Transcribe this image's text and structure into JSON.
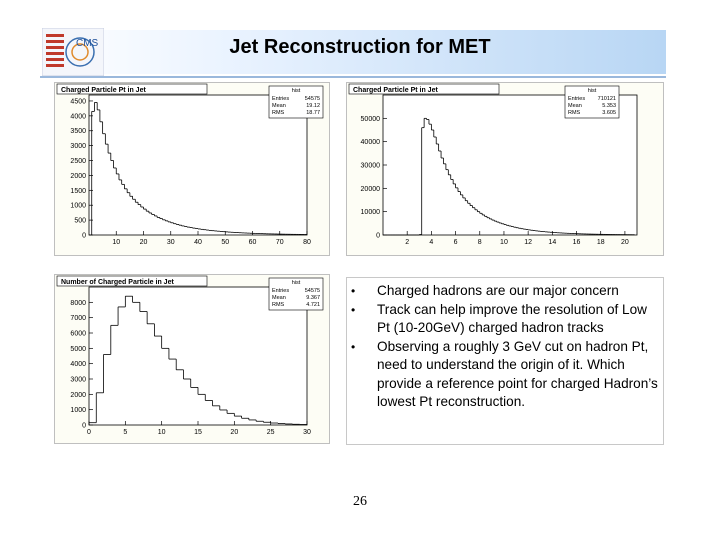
{
  "slide": {
    "title": "Jet Reconstruction for MET",
    "page_number": "26",
    "logo_text": "CMS"
  },
  "bullets": [
    "Charged hadrons are our major concern",
    "Track can help improve the resolution of Low Pt (10-20GeV) charged hadron tracks",
    "Observing a roughly 3 GeV cut on hadron Pt, need to understand the origin of it. Which provide a reference point for charged Hadron’s lowest Pt reconstruction."
  ],
  "colors": {
    "header_accent": "#b8d6f4",
    "plot_bg": "#fdfdf5",
    "hist_line": "#000000"
  },
  "chart_data": [
    {
      "type": "histogram",
      "title": "Charged Particle Pt in Jet",
      "stats": {
        "name": "hist",
        "rows": [
          [
            "Entries",
            "54575"
          ],
          [
            "Mean",
            "19.12"
          ],
          [
            "RMS",
            "18.77"
          ]
        ]
      },
      "xlim": [
        0,
        80
      ],
      "ylim": [
        0,
        4700
      ],
      "xticks": [
        10,
        20,
        30,
        40,
        50,
        60,
        70,
        80
      ],
      "yticks": [
        0,
        500,
        1000,
        1500,
        2000,
        2500,
        3000,
        3500,
        4000,
        4500
      ],
      "bin_width": 1,
      "x_start": 0,
      "values": [
        0,
        4150,
        4450,
        4200,
        3800,
        3400,
        3050,
        2750,
        2500,
        2250,
        2050,
        1850,
        1700,
        1550,
        1420,
        1300,
        1200,
        1100,
        1020,
        940,
        870,
        800,
        740,
        690,
        640,
        590,
        550,
        510,
        475,
        440,
        410,
        380,
        355,
        330,
        305,
        285,
        265,
        248,
        232,
        217,
        203,
        190,
        178,
        166,
        155,
        145,
        136,
        128,
        120,
        112,
        105,
        98,
        92,
        86,
        81,
        76,
        71,
        67,
        63,
        59,
        55,
        52,
        49,
        46,
        43,
        40,
        38,
        36,
        34,
        32,
        30,
        28,
        26,
        25,
        23,
        22,
        21,
        20,
        19,
        18
      ]
    },
    {
      "type": "histogram",
      "title": "Charged Particle Pt in Jet",
      "stats": {
        "name": "hist",
        "rows": [
          [
            "Entries",
            "710121"
          ],
          [
            "Mean",
            "5.353"
          ],
          [
            "RMS",
            "3.605"
          ]
        ]
      },
      "xlim": [
        0,
        21
      ],
      "ylim": [
        0,
        60000
      ],
      "xticks": [
        2,
        4,
        6,
        8,
        10,
        12,
        14,
        16,
        18,
        20
      ],
      "yticks": [
        0,
        10000,
        20000,
        30000,
        40000,
        50000
      ],
      "bin_width": 0.2,
      "x_start": 0,
      "values": [
        0,
        0,
        0,
        0,
        0,
        0,
        0,
        0,
        0,
        0,
        0,
        0,
        0,
        0,
        0,
        200,
        46000,
        50000,
        49500,
        47500,
        45000,
        42000,
        39000,
        36000,
        33000,
        30500,
        28000,
        25800,
        23800,
        21900,
        20200,
        18600,
        17200,
        15900,
        14700,
        13600,
        12600,
        11700,
        10800,
        10000,
        9300,
        8600,
        8000,
        7400,
        6900,
        6400,
        5950,
        5550,
        5150,
        4800,
        4450,
        4150,
        3870,
        3600,
        3350,
        3120,
        2900,
        2700,
        2520,
        2350,
        2190,
        2040,
        1900,
        1770,
        1650,
        1540,
        1440,
        1340,
        1250,
        1170,
        1090,
        1020,
        950,
        890,
        830,
        775,
        725,
        680,
        635,
        595,
        555,
        520,
        487,
        456,
        427,
        400,
        375,
        351,
        329,
        308,
        289,
        271,
        254,
        238,
        223,
        209,
        196,
        184,
        172,
        161,
        151,
        142,
        133,
        125
      ]
    },
    {
      "type": "histogram",
      "title": "Number of Charged Particle in Jet",
      "stats": {
        "name": "hist",
        "rows": [
          [
            "Entries",
            "54575"
          ],
          [
            "Mean",
            "9.367"
          ],
          [
            "RMS",
            "4.721"
          ]
        ]
      },
      "xlim": [
        0,
        30
      ],
      "ylim": [
        0,
        9000
      ],
      "xticks": [
        0,
        5,
        10,
        15,
        20,
        25,
        30
      ],
      "yticks": [
        0,
        1000,
        2000,
        3000,
        4000,
        5000,
        6000,
        7000,
        8000
      ],
      "bin_width": 1,
      "x_start": 0,
      "values": [
        150,
        2100,
        4600,
        6500,
        7700,
        8400,
        8000,
        7400,
        6600,
        5800,
        5000,
        4300,
        3600,
        3000,
        2450,
        2000,
        1600,
        1250,
        980,
        760,
        580,
        440,
        330,
        245,
        180,
        130,
        95,
        68,
        48,
        34
      ]
    }
  ]
}
